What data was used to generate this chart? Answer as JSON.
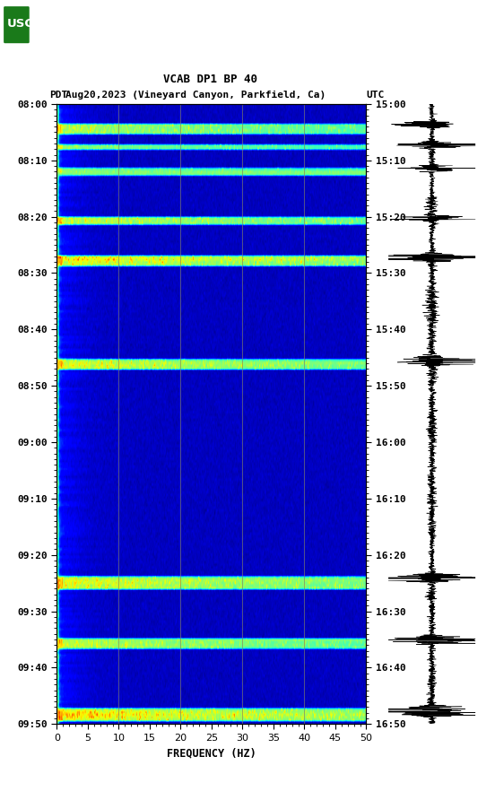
{
  "title_line1": "VCAB DP1 BP 40",
  "title_line2_left": "PDT",
  "title_line2_mid": "Aug20,2023 (Vineyard Canyon, Parkfield, Ca)",
  "title_line2_right": "UTC",
  "xlabel": "FREQUENCY (HZ)",
  "freq_min": 0,
  "freq_max": 50,
  "freq_ticks": [
    0,
    5,
    10,
    15,
    20,
    25,
    30,
    35,
    40,
    45,
    50
  ],
  "time_labels_left": [
    "08:00",
    "08:10",
    "08:20",
    "08:30",
    "08:40",
    "08:50",
    "09:00",
    "09:10",
    "09:20",
    "09:30",
    "09:40",
    "09:50"
  ],
  "time_labels_right": [
    "15:00",
    "15:10",
    "15:20",
    "15:30",
    "15:40",
    "15:50",
    "16:00",
    "16:10",
    "16:20",
    "16:30",
    "16:40",
    "16:50"
  ],
  "bg_color": "#ffffff",
  "vertical_grid_freqs": [
    10,
    20,
    30,
    40
  ],
  "grid_color": "#808060",
  "n_time": 240,
  "n_freq": 500
}
